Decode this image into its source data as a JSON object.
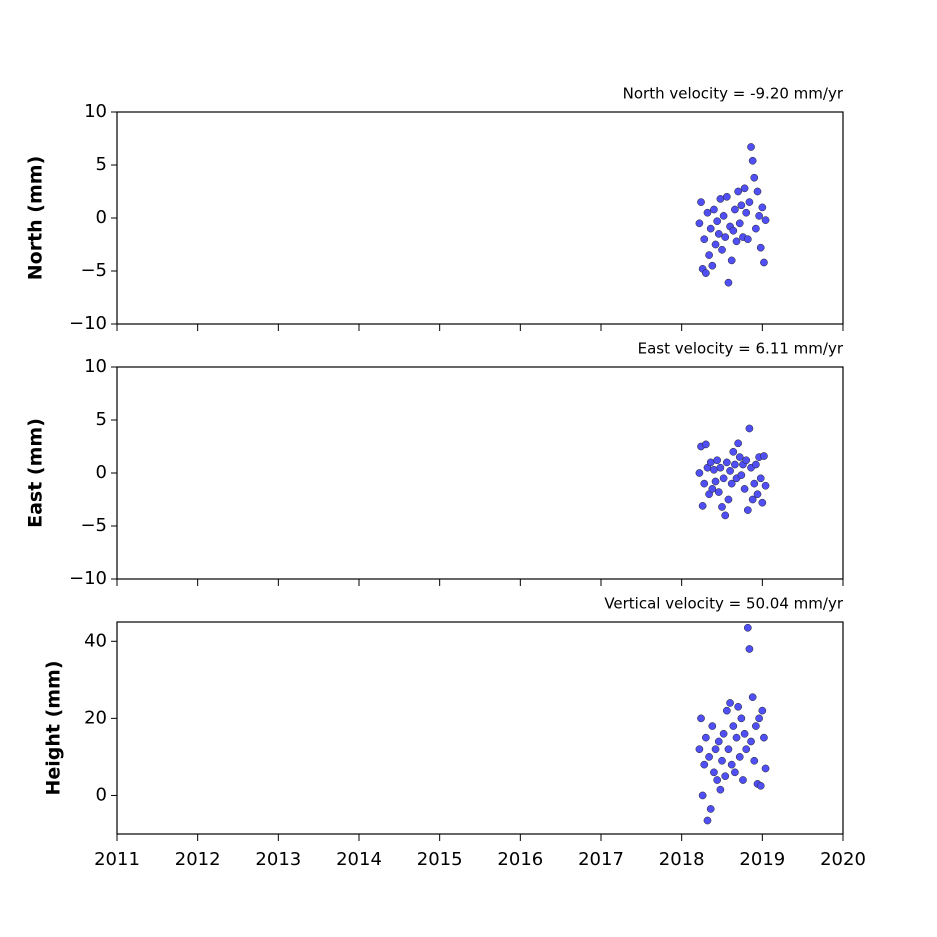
{
  "chart_data": [
    {
      "type": "scatter",
      "title": "North velocity = -9.20 mm/yr",
      "ylabel": "North (mm)",
      "color": "#4f4ff5",
      "xlim": [
        2011,
        2020
      ],
      "ylim": [
        -10,
        10
      ],
      "yticks": [
        {
          "value": -10,
          "label": "−10"
        },
        {
          "value": -5,
          "label": "−5"
        },
        0,
        5,
        10
      ],
      "x": [
        2018.22,
        2018.24,
        2018.26,
        2018.28,
        2018.3,
        2018.32,
        2018.34,
        2018.36,
        2018.38,
        2018.4,
        2018.42,
        2018.44,
        2018.46,
        2018.48,
        2018.5,
        2018.52,
        2018.54,
        2018.56,
        2018.58,
        2018.6,
        2018.62,
        2018.64,
        2018.66,
        2018.68,
        2018.7,
        2018.72,
        2018.74,
        2018.76,
        2018.78,
        2018.8,
        2018.82,
        2018.84,
        2018.86,
        2018.88,
        2018.9,
        2018.92,
        2018.94,
        2018.96,
        2018.98,
        2019.0,
        2019.02,
        2019.04
      ],
      "y": [
        -0.5,
        1.5,
        -4.8,
        -2.0,
        -5.2,
        0.5,
        -3.5,
        -1.0,
        -4.5,
        0.8,
        -2.5,
        -0.3,
        -1.5,
        1.8,
        -3.0,
        0.2,
        -1.8,
        2.0,
        -6.1,
        -0.8,
        -4.0,
        -1.2,
        0.8,
        -2.2,
        2.5,
        -0.5,
        1.2,
        -1.8,
        2.8,
        0.5,
        -2.0,
        1.5,
        6.7,
        5.4,
        3.8,
        -1.0,
        2.5,
        0.2,
        -2.8,
        1.0,
        -4.2,
        -0.2
      ]
    },
    {
      "type": "scatter",
      "title": "East velocity = 6.11 mm/yr",
      "ylabel": "East (mm)",
      "color": "#4f4ff5",
      "xlim": [
        2011,
        2020
      ],
      "ylim": [
        -10,
        10
      ],
      "yticks": [
        {
          "value": -10,
          "label": "−10"
        },
        {
          "value": -5,
          "label": "−5"
        },
        0,
        5,
        10
      ],
      "x": [
        2018.22,
        2018.24,
        2018.26,
        2018.28,
        2018.3,
        2018.32,
        2018.34,
        2018.36,
        2018.38,
        2018.4,
        2018.42,
        2018.44,
        2018.46,
        2018.48,
        2018.5,
        2018.52,
        2018.54,
        2018.56,
        2018.58,
        2018.6,
        2018.62,
        2018.64,
        2018.66,
        2018.68,
        2018.7,
        2018.72,
        2018.74,
        2018.76,
        2018.78,
        2018.8,
        2018.82,
        2018.84,
        2018.86,
        2018.88,
        2018.9,
        2018.92,
        2018.94,
        2018.96,
        2018.98,
        2019.0,
        2019.02,
        2019.04
      ],
      "y": [
        0.0,
        2.5,
        -3.1,
        -1.0,
        2.7,
        0.5,
        -2.0,
        1.0,
        -1.5,
        0.3,
        -0.8,
        1.2,
        -1.8,
        0.5,
        -3.2,
        -0.5,
        -4.0,
        1.0,
        -2.5,
        0.2,
        -1.0,
        2.0,
        0.8,
        -0.5,
        2.8,
        1.5,
        -0.2,
        0.8,
        -1.5,
        1.2,
        -3.5,
        4.2,
        0.5,
        -2.5,
        -1.0,
        0.8,
        -2.0,
        1.5,
        -0.5,
        -2.8,
        1.6,
        -1.2
      ]
    },
    {
      "type": "scatter",
      "title": "Vertical velocity = 50.04 mm/yr",
      "ylabel": "Height (mm)",
      "color": "#4f4ff5",
      "xlim": [
        2011,
        2020
      ],
      "xticks": [
        2011,
        2012,
        2013,
        2014,
        2015,
        2016,
        2017,
        2018,
        2019,
        2020
      ],
      "ylim": [
        -10,
        45
      ],
      "yticks": [
        0,
        20,
        40
      ],
      "x": [
        2018.22,
        2018.24,
        2018.26,
        2018.28,
        2018.3,
        2018.32,
        2018.34,
        2018.36,
        2018.38,
        2018.4,
        2018.42,
        2018.44,
        2018.46,
        2018.48,
        2018.5,
        2018.52,
        2018.54,
        2018.56,
        2018.58,
        2018.6,
        2018.62,
        2018.64,
        2018.66,
        2018.68,
        2018.7,
        2018.72,
        2018.74,
        2018.76,
        2018.78,
        2018.8,
        2018.82,
        2018.84,
        2018.86,
        2018.88,
        2018.9,
        2018.92,
        2018.94,
        2018.96,
        2018.98,
        2019.0,
        2019.02,
        2019.04
      ],
      "y": [
        12,
        20,
        0,
        8,
        15,
        -6.5,
        10,
        -3.5,
        18,
        6,
        12,
        4,
        14,
        1.5,
        9,
        16,
        5,
        22,
        12,
        24,
        8,
        18,
        6,
        15,
        23,
        10,
        20,
        4,
        16,
        12,
        43.5,
        38,
        14,
        25.5,
        9,
        18,
        3,
        20,
        2.5,
        22,
        15,
        7
      ]
    }
  ]
}
